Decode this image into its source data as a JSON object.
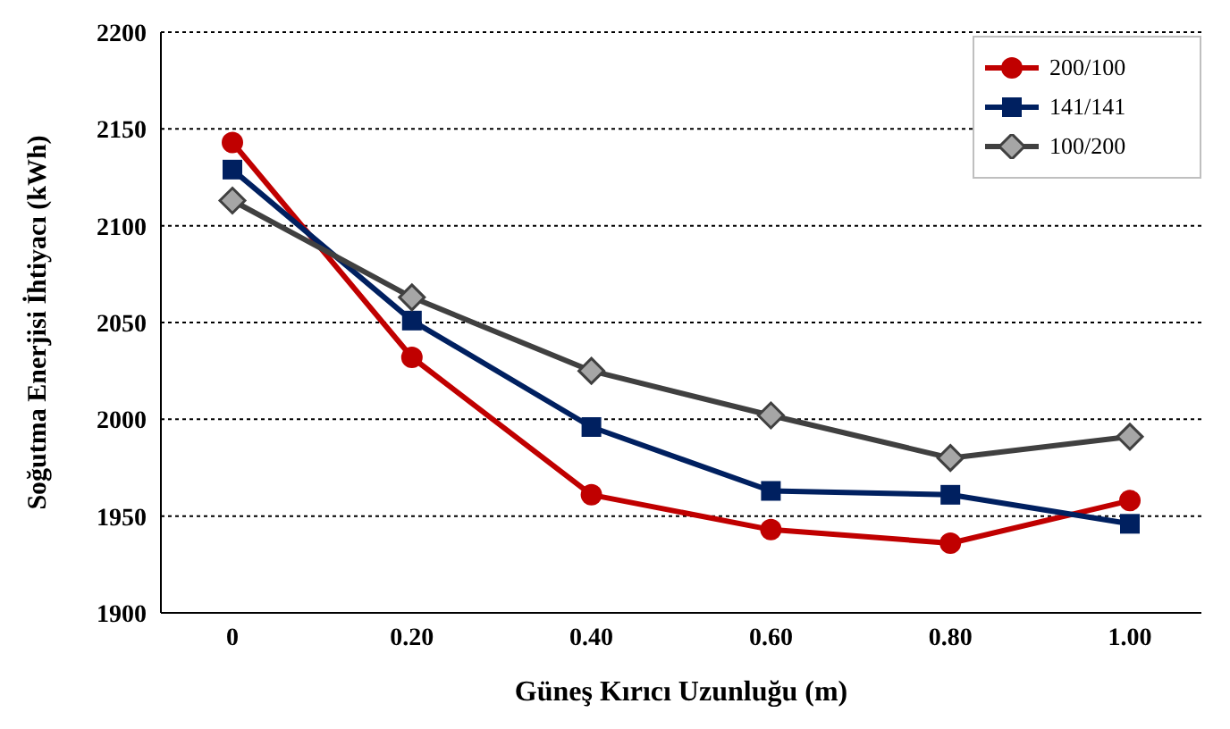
{
  "chart_data": {
    "type": "line",
    "xlabel": "Güneş Kırıcı Uzunluğu (m)",
    "ylabel": "Soğutma Enerjisi İhtiyacı (kWh)",
    "categories": [
      "0",
      "0.20",
      "0.40",
      "0.60",
      "0.80",
      "1.00"
    ],
    "series": [
      {
        "name": "200/100",
        "color": "#c00000",
        "marker": "circle",
        "values": [
          2143,
          2032,
          1961,
          1943,
          1936,
          1958
        ]
      },
      {
        "name": "141/141",
        "color": "#002060",
        "marker": "square",
        "values": [
          2129,
          2051,
          1996,
          1963,
          1961,
          1946
        ]
      },
      {
        "name": "100/200",
        "color": "#404040",
        "marker": "diamond",
        "values": [
          2113,
          2063,
          2025,
          2002,
          1980,
          1991
        ]
      }
    ],
    "ylim": [
      1900,
      2200
    ],
    "yticks": [
      1900,
      1950,
      2000,
      2050,
      2100,
      2150,
      2200
    ],
    "grid": "y",
    "legend": "top right",
    "line_style": "solid"
  }
}
